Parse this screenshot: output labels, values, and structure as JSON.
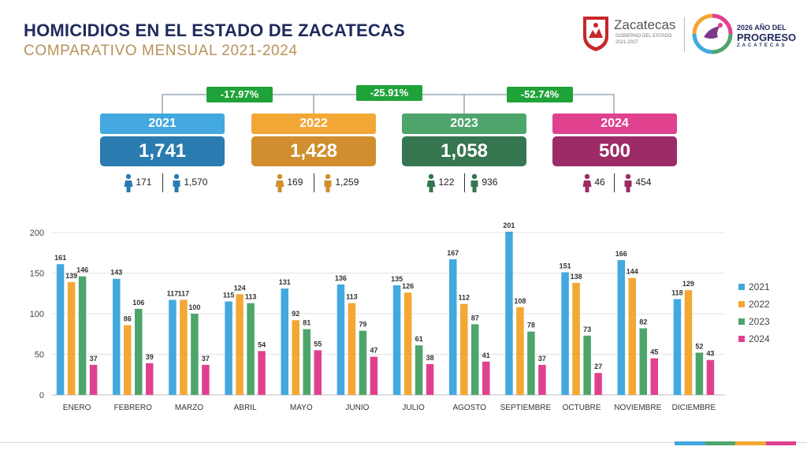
{
  "header": {
    "title": "HOMICIDIOS EN EL ESTADO DE ZACATECAS",
    "subtitle": "COMPARATIVO MENSUAL 2021-2024"
  },
  "logos": {
    "gov_name": "Zacatecas",
    "gov_line1": "GOBIERNO DEL ESTADO",
    "gov_line2": "2021-2027",
    "campaign_line1": "2026 AÑO DEL",
    "campaign_line2": "PROGRESO",
    "campaign_line3": "ZACATECAS"
  },
  "summary": {
    "changes": [
      "-17.97%",
      "-25.91%",
      "-52.74%"
    ],
    "years": [
      {
        "year": "2021",
        "total": "1,741",
        "female": "171",
        "male": "1,570",
        "light": "#42a8df",
        "dark": "#2a7bb0"
      },
      {
        "year": "2022",
        "total": "1,428",
        "female": "169",
        "male": "1,259",
        "light": "#f3a734",
        "dark": "#d18e2e"
      },
      {
        "year": "2023",
        "total": "1,058",
        "female": "122",
        "male": "936",
        "light": "#4ea56c",
        "dark": "#357650"
      },
      {
        "year": "2024",
        "total": "500",
        "female": "46",
        "male": "454",
        "light": "#e0418f",
        "dark": "#9c2c68"
      }
    ]
  },
  "chart_data": {
    "type": "bar",
    "title": "",
    "xlabel": "",
    "ylabel": "",
    "ylim": [
      0,
      200
    ],
    "yticks": [
      0,
      50,
      100,
      150,
      200
    ],
    "grid": true,
    "legend_position": "right",
    "categories": [
      "ENERO",
      "FEBRERO",
      "MARZO",
      "ABRIL",
      "MAYO",
      "JUNIO",
      "JULIO",
      "AGOSTO",
      "SEPTIEMBRE",
      "OCTUBRE",
      "NOVIEMBRE",
      "DICIEMBRE"
    ],
    "series": [
      {
        "name": "2021",
        "color": "#42a8df",
        "values": [
          161,
          143,
          117,
          115,
          131,
          136,
          135,
          167,
          201,
          151,
          166,
          118
        ]
      },
      {
        "name": "2022",
        "color": "#f3a734",
        "values": [
          139,
          86,
          117,
          124,
          92,
          113,
          126,
          112,
          108,
          138,
          144,
          129
        ]
      },
      {
        "name": "2023",
        "color": "#4ea56c",
        "values": [
          146,
          106,
          100,
          113,
          81,
          79,
          61,
          87,
          78,
          73,
          82,
          52
        ]
      },
      {
        "name": "2024",
        "color": "#e0418f",
        "values": [
          37,
          39,
          37,
          54,
          55,
          47,
          38,
          41,
          37,
          27,
          45,
          43
        ]
      }
    ]
  },
  "footer": {
    "stripe_colors": [
      "#42a8df",
      "#4ea56c",
      "#f3a734",
      "#e0418f"
    ]
  }
}
